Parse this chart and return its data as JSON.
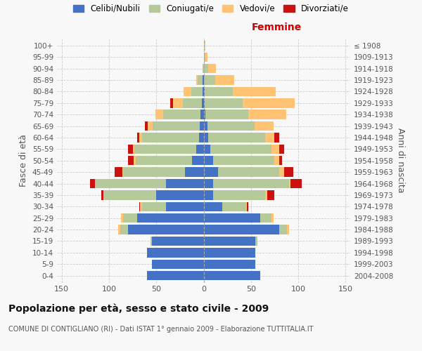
{
  "age_groups": [
    "0-4",
    "5-9",
    "10-14",
    "15-19",
    "20-24",
    "25-29",
    "30-34",
    "35-39",
    "40-44",
    "45-49",
    "50-54",
    "55-59",
    "60-64",
    "65-69",
    "70-74",
    "75-79",
    "80-84",
    "85-89",
    "90-94",
    "95-99",
    "100+"
  ],
  "birth_years": [
    "2004-2008",
    "1999-2003",
    "1994-1998",
    "1989-1993",
    "1984-1988",
    "1979-1983",
    "1974-1978",
    "1969-1973",
    "1964-1968",
    "1959-1963",
    "1954-1958",
    "1949-1953",
    "1944-1948",
    "1939-1943",
    "1934-1938",
    "1929-1933",
    "1924-1928",
    "1919-1923",
    "1914-1918",
    "1909-1913",
    "≤ 1908"
  ],
  "males": {
    "celibi": [
      60,
      55,
      60,
      55,
      80,
      70,
      40,
      50,
      40,
      20,
      12,
      8,
      5,
      4,
      3,
      2,
      1,
      1,
      0,
      0,
      0
    ],
    "coniugati": [
      0,
      0,
      0,
      1,
      8,
      15,
      25,
      55,
      75,
      65,
      60,
      65,
      60,
      50,
      40,
      20,
      12,
      5,
      1,
      0,
      0
    ],
    "vedovi": [
      0,
      0,
      0,
      0,
      2,
      2,
      2,
      1,
      0,
      1,
      2,
      2,
      3,
      5,
      8,
      10,
      8,
      2,
      0,
      0,
      0
    ],
    "divorziati": [
      0,
      0,
      0,
      0,
      0,
      0,
      1,
      2,
      5,
      8,
      6,
      5,
      2,
      3,
      0,
      3,
      0,
      0,
      0,
      0,
      0
    ]
  },
  "females": {
    "nubili": [
      60,
      55,
      55,
      55,
      80,
      60,
      20,
      10,
      10,
      15,
      10,
      7,
      5,
      4,
      2,
      1,
      1,
      0,
      0,
      0,
      0
    ],
    "coniugate": [
      0,
      0,
      0,
      2,
      8,
      12,
      25,
      55,
      80,
      65,
      65,
      65,
      60,
      50,
      45,
      40,
      30,
      12,
      5,
      2,
      0
    ],
    "vedove": [
      0,
      0,
      0,
      0,
      2,
      2,
      1,
      2,
      2,
      5,
      5,
      8,
      10,
      20,
      40,
      55,
      45,
      20,
      8,
      2,
      2
    ],
    "divorziate": [
      0,
      0,
      0,
      0,
      0,
      0,
      1,
      8,
      12,
      10,
      3,
      5,
      5,
      0,
      0,
      0,
      0,
      0,
      0,
      0,
      0
    ]
  },
  "colors": {
    "celibi": "#4472c4",
    "coniugati": "#b5c99a",
    "vedovi": "#ffc373",
    "divorziati": "#cc1111"
  },
  "xlim": 155,
  "title": "Popolazione per età, sesso e stato civile - 2009",
  "subtitle": "COMUNE DI CONTIGLIANO (RI) - Dati ISTAT 1° gennaio 2009 - Elaborazione TUTTITALIA.IT",
  "ylabel_left": "Fasce di età",
  "ylabel_right": "Anni di nascita",
  "xlabel_right": "Femmine",
  "bg_color": "#f8f8f8",
  "grid_color": "#cccccc"
}
